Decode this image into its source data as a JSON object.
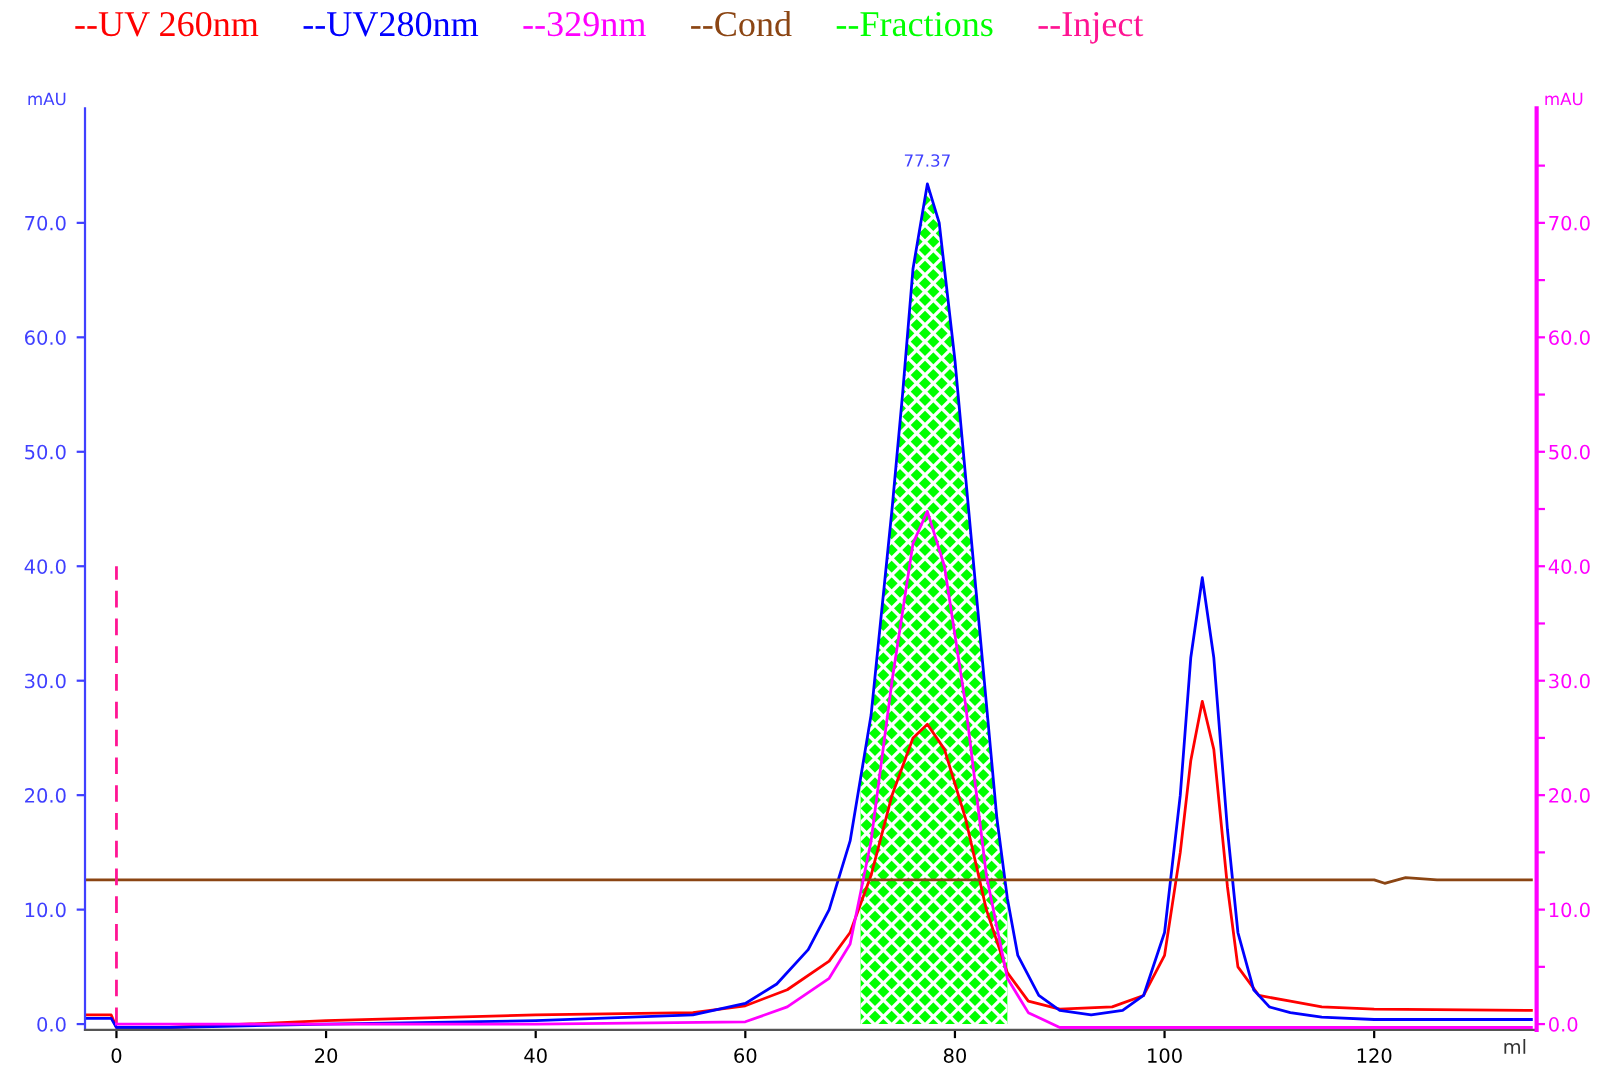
{
  "chart_data": {
    "type": "line",
    "xlabel": "ml",
    "ylabel": "mAU",
    "y2label": "mAU",
    "xlim": [
      -3,
      135.5
    ],
    "xticks": [
      0,
      20,
      40,
      60,
      80,
      100,
      120
    ],
    "ylim": [
      -0.5,
      80
    ],
    "yticks": [
      {
        "value": 0,
        "label": "0.0"
      },
      {
        "value": 10,
        "label": "10.0"
      },
      {
        "value": 20,
        "label": "20.0"
      },
      {
        "value": 30,
        "label": "30.0"
      },
      {
        "value": 40,
        "label": "40.0"
      },
      {
        "value": 50,
        "label": "50.0"
      },
      {
        "value": 60,
        "label": "60.0"
      },
      {
        "value": 70,
        "label": "70.0"
      }
    ],
    "y2lim": [
      -0.5,
      80
    ],
    "y2ticks": [
      {
        "value": 0,
        "label": "0.0"
      },
      {
        "value": 5,
        "label": null
      },
      {
        "value": 10,
        "label": "10.0"
      },
      {
        "value": 15,
        "label": null
      },
      {
        "value": 20,
        "label": "20.0"
      },
      {
        "value": 25,
        "label": null
      },
      {
        "value": 30,
        "label": "30.0"
      },
      {
        "value": 35,
        "label": null
      },
      {
        "value": 40,
        "label": "40.0"
      },
      {
        "value": 45,
        "label": null
      },
      {
        "value": 50,
        "label": "50.0"
      },
      {
        "value": 55,
        "label": null
      },
      {
        "value": 60,
        "label": "60.0"
      },
      {
        "value": 65,
        "label": null
      },
      {
        "value": 70,
        "label": "70.0"
      },
      {
        "value": 75,
        "label": null
      }
    ],
    "grid": false,
    "legend": "top",
    "marker": "none",
    "annotations": [
      {
        "text": "77.37",
        "x": 77.37,
        "y": 73.4
      }
    ],
    "series": [
      {
        "name": "--UV 260nm",
        "color": "#ff0000",
        "x": [
          -3,
          -0.5,
          0,
          5,
          20,
          40,
          55,
          60,
          64,
          68,
          70,
          72,
          74,
          76,
          77.37,
          79,
          81,
          83,
          85,
          87,
          90,
          95,
          98,
          100,
          101.5,
          102.5,
          103.6,
          104.7,
          106,
          107,
          109,
          112,
          115,
          120,
          135
        ],
        "values": [
          0.8,
          0.8,
          -0.3,
          -0.3,
          0.3,
          0.8,
          1.0,
          1.6,
          3,
          5.5,
          8,
          13,
          20,
          25,
          26.2,
          24,
          18,
          10,
          4.5,
          2,
          1.3,
          1.5,
          2.5,
          6,
          15,
          23,
          28.2,
          24,
          12,
          5,
          2.5,
          2.0,
          1.5,
          1.3,
          1.2
        ]
      },
      {
        "name": "--UV280nm",
        "color": "#0000ff",
        "x": [
          -3,
          -0.5,
          0,
          5,
          20,
          40,
          55,
          60,
          63,
          66,
          68,
          70,
          72,
          74,
          75,
          76,
          77.37,
          78.5,
          80,
          82,
          84,
          85,
          86,
          88,
          90,
          93,
          96,
          98,
          100,
          101.5,
          102.5,
          103.6,
          104.7,
          106,
          107,
          108.5,
          110,
          112,
          115,
          120,
          135
        ],
        "values": [
          0.5,
          0.5,
          -0.3,
          -0.3,
          0.0,
          0.3,
          0.8,
          1.8,
          3.5,
          6.5,
          10,
          16,
          27,
          45,
          55,
          66,
          73.4,
          70,
          58,
          38,
          18,
          11,
          6,
          2.5,
          1.2,
          0.8,
          1.2,
          2.5,
          8,
          20,
          32,
          39.0,
          32,
          17,
          8,
          3,
          1.5,
          1.0,
          0.6,
          0.4,
          0.4
        ]
      },
      {
        "name": "--329nm",
        "color": "#ff00ff",
        "axis": "y2",
        "x": [
          0,
          40,
          60,
          64,
          68,
          70,
          72,
          74,
          76,
          77.37,
          79,
          81,
          83,
          85,
          87,
          90,
          135
        ],
        "values": [
          0,
          0,
          0.2,
          1.5,
          4,
          7,
          16,
          30,
          42,
          44.8,
          40,
          28,
          13,
          4,
          1,
          -0.3,
          -0.3
        ]
      },
      {
        "name": "--Cond",
        "color": "#8b4513",
        "x": [
          -3,
          120,
          121,
          123,
          126,
          135
        ],
        "values": [
          12.6,
          12.6,
          12.3,
          12.8,
          12.6,
          12.6
        ]
      },
      {
        "name": "--Fractions",
        "color": "#00ff00",
        "type": "area",
        "x": [
          71,
          72,
          74,
          75,
          76,
          77.37,
          78.5,
          80,
          82,
          84,
          85
        ],
        "values": [
          21,
          27,
          45,
          55,
          66,
          73.4,
          70,
          58,
          38,
          18,
          11
        ]
      },
      {
        "name": "--Inject",
        "color": "#ff1493",
        "line_style": "dashed",
        "x": [
          0,
          0
        ],
        "values": [
          0,
          40
        ]
      }
    ]
  }
}
